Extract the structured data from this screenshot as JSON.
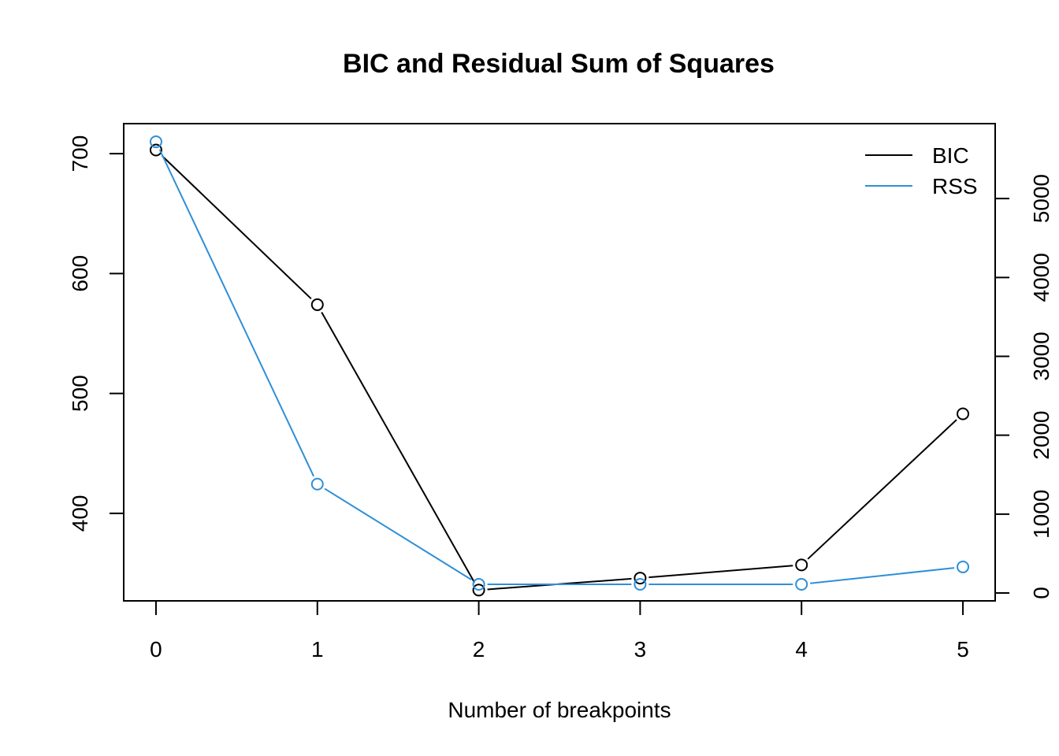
{
  "chart_data": {
    "type": "line",
    "title": "BIC and Residual Sum of Squares",
    "xlabel": "Number of breakpoints",
    "ylabel": "",
    "ylabel_right": "",
    "x": [
      0,
      1,
      2,
      3,
      4,
      5
    ],
    "xlim": [
      -0.2,
      5.2
    ],
    "x_ticks": [
      0,
      1,
      2,
      3,
      4,
      5
    ],
    "ylim_left": [
      327,
      725
    ],
    "y_ticks_left": [
      400,
      500,
      600,
      700
    ],
    "ylim_right": [
      -100,
      5950
    ],
    "y_ticks_right": [
      0,
      1000,
      2000,
      3000,
      4000,
      5000
    ],
    "grid": false,
    "legend_position": "top-right",
    "series": [
      {
        "name": "BIC",
        "axis": "left",
        "color": "#000000",
        "values": [
          703,
          574,
          336,
          346,
          357,
          483
        ]
      },
      {
        "name": "RSS",
        "axis": "right",
        "color": "#2E8FD8",
        "values": [
          5720,
          1380,
          110,
          110,
          110,
          330
        ]
      }
    ]
  }
}
